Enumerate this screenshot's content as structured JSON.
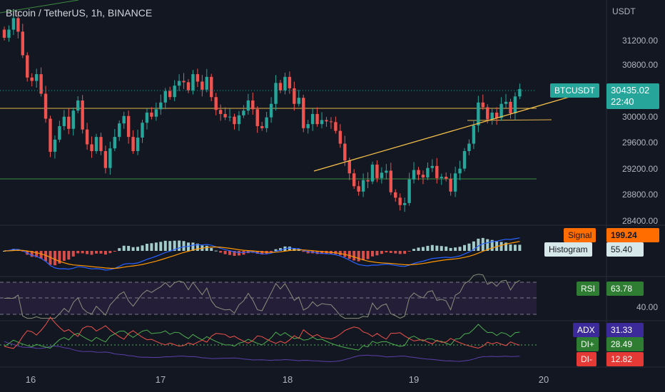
{
  "header": {
    "title": "Bitcoin / TetherUS, 1h, BINANCE",
    "currency": "USDT"
  },
  "price_axis": {
    "ticks": [
      "31200.00",
      "30800.00",
      "30000.00",
      "29600.00",
      "29200.00",
      "28800.00",
      "28400.00"
    ]
  },
  "time_axis": {
    "ticks": [
      "16",
      "17",
      "18",
      "19",
      "20"
    ]
  },
  "last_price": {
    "symbol": "BTCUSDT",
    "price": "30435.02",
    "countdown": "22:40"
  },
  "macd": {
    "signal_label": "Signal",
    "signal_value": "199.24",
    "hist_label": "Histogram",
    "hist_value": "55.40"
  },
  "rsi": {
    "label": "RSI",
    "value": "63.78",
    "level": "40.00"
  },
  "adx": {
    "adx_label": "ADX",
    "adx_value": "31.33",
    "dip_label": "DI+",
    "dip_value": "28.49",
    "dim_label": "DI-",
    "dim_value": "12.82"
  },
  "colors": {
    "up": "#26a69a",
    "down": "#ef5350",
    "trend": "#f5c14a",
    "support": "#4caf50",
    "rsi_line": "#8a8f7a",
    "rsi_band": "#2a2140",
    "macd_line": "#2962ff",
    "signal_line": "#ff9800",
    "adx_line": "#5b3fa8",
    "dip_line": "#4caf50",
    "dim_line": "#f0524a"
  },
  "chart_data": {
    "type": "candlestick",
    "title": "Bitcoin / TetherUS, 1h, BINANCE",
    "ylabel": "USDT",
    "ylim": [
      28400,
      31600
    ],
    "closes": [
      31210,
      31330,
      31500,
      31300,
      30950,
      30620,
      30570,
      30670,
      30380,
      30010,
      29520,
      29700,
      29900,
      30040,
      29860,
      30130,
      30280,
      29850,
      29630,
      29530,
      29740,
      29530,
      29280,
      29570,
      29740,
      29940,
      30050,
      29740,
      29530,
      29730,
      29950,
      30100,
      30040,
      30150,
      30250,
      30420,
      30330,
      30500,
      30570,
      30550,
      30430,
      30670,
      30560,
      30440,
      30630,
      30330,
      30140,
      30080,
      30030,
      30040,
      29930,
      30060,
      30130,
      30280,
      30150,
      29900,
      29870,
      30030,
      30230,
      30540,
      30430,
      30630,
      30460,
      30230,
      30320,
      29870,
      29930,
      30080,
      29930,
      29990,
      29970,
      29960,
      29830,
      29640,
      29390,
      29200,
      29010,
      28930,
      29100,
      29080,
      29330,
      29130,
      29210,
      29240,
      28920,
      28840,
      28730,
      28760,
      29110,
      29250,
      29180,
      29140,
      29280,
      29310,
      29130,
      29150,
      29120,
      28930,
      29200,
      29270,
      29530,
      29640,
      29910,
      30250,
      30180,
      30000,
      30100,
      30020,
      30230,
      30260,
      30090,
      30340,
      30450
    ]
  }
}
